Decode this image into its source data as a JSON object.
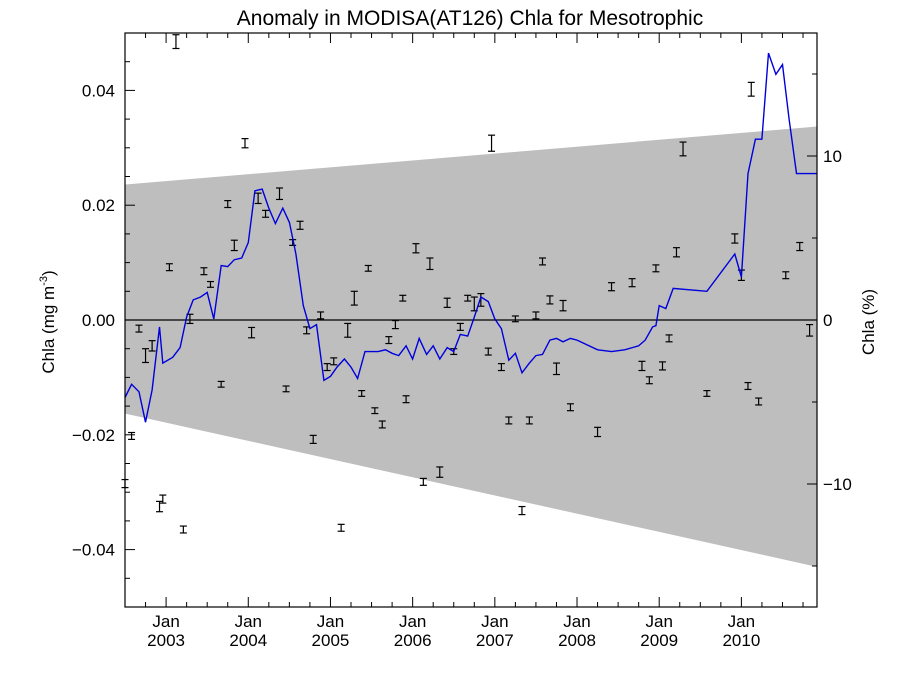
{
  "chart_data": {
    "type": "line",
    "title": "Anomaly in MODISA(AT126) Chla for Mesotrophic",
    "ylabel_left": "Chla (mg m",
    "ylabel_left_sup": "-3",
    "ylabel_left_close": ")",
    "ylabel_right": "Chla (%)",
    "xlim": [
      2002.5,
      2010.92
    ],
    "ylim": [
      -0.05,
      0.05
    ],
    "y2lim": [
      -17.5,
      17.5
    ],
    "yticks": [
      {
        "value": 0.04,
        "label": "0.04"
      },
      {
        "value": 0.02,
        "label": "0.02"
      },
      {
        "value": 0.0,
        "label": "0.00"
      },
      {
        "value": -0.02,
        "label": "−0.02"
      },
      {
        "value": -0.04,
        "label": "−0.04"
      }
    ],
    "y2ticks": [
      {
        "value": 10,
        "label": "10"
      },
      {
        "value": 0,
        "label": "0"
      },
      {
        "value": -10,
        "label": "−10"
      }
    ],
    "xticks": [
      {
        "value": 2003.0,
        "month": "Jan",
        "year": "2003"
      },
      {
        "value": 2004.0,
        "month": "Jan",
        "year": "2004"
      },
      {
        "value": 2005.0,
        "month": "Jan",
        "year": "2005"
      },
      {
        "value": 2006.0,
        "month": "Jan",
        "year": "2006"
      },
      {
        "value": 2007.0,
        "month": "Jan",
        "year": "2007"
      },
      {
        "value": 2008.0,
        "month": "Jan",
        "year": "2008"
      },
      {
        "value": 2009.0,
        "month": "Jan",
        "year": "2009"
      },
      {
        "value": 2010.0,
        "month": "Jan",
        "year": "2010"
      }
    ],
    "band": {
      "upper": [
        [
          2002.5,
          0.0236
        ],
        [
          2010.92,
          0.0337
        ]
      ],
      "lower": [
        [
          2002.5,
          -0.0163
        ],
        [
          2010.92,
          -0.043
        ]
      ],
      "color": "#bebebe"
    },
    "line": {
      "color": "#0000dd",
      "points": [
        [
          2002.5,
          -0.0135
        ],
        [
          2002.58,
          -0.0112
        ],
        [
          2002.67,
          -0.0125
        ],
        [
          2002.75,
          -0.0178
        ],
        [
          2002.83,
          -0.0122
        ],
        [
          2002.92,
          -0.0012
        ],
        [
          2002.96,
          -0.0075
        ],
        [
          2003.08,
          -0.0065
        ],
        [
          2003.17,
          -0.0048
        ],
        [
          2003.25,
          0.0005
        ],
        [
          2003.33,
          0.0035
        ],
        [
          2003.42,
          0.004
        ],
        [
          2003.5,
          0.0048
        ],
        [
          2003.58,
          0.0002
        ],
        [
          2003.67,
          0.0095
        ],
        [
          2003.75,
          0.0093
        ],
        [
          2003.83,
          0.0105
        ],
        [
          2003.92,
          0.0108
        ],
        [
          2004.0,
          0.0135
        ],
        [
          2004.08,
          0.0225
        ],
        [
          2004.17,
          0.0228
        ],
        [
          2004.25,
          0.0195
        ],
        [
          2004.33,
          0.0168
        ],
        [
          2004.42,
          0.0195
        ],
        [
          2004.5,
          0.017
        ],
        [
          2004.58,
          0.0115
        ],
        [
          2004.67,
          0.0025
        ],
        [
          2004.75,
          -0.0015
        ],
        [
          2004.83,
          -0.0008
        ],
        [
          2004.92,
          -0.0105
        ],
        [
          2005.0,
          -0.0098
        ],
        [
          2005.08,
          -0.0082
        ],
        [
          2005.17,
          -0.0068
        ],
        [
          2005.25,
          -0.0082
        ],
        [
          2005.33,
          -0.0102
        ],
        [
          2005.42,
          -0.0055
        ],
        [
          2005.5,
          -0.0055
        ],
        [
          2005.58,
          -0.0055
        ],
        [
          2005.67,
          -0.0052
        ],
        [
          2005.75,
          -0.0058
        ],
        [
          2005.83,
          -0.0062
        ],
        [
          2005.92,
          -0.0045
        ],
        [
          2006.0,
          -0.0068
        ],
        [
          2006.08,
          -0.0032
        ],
        [
          2006.17,
          -0.006
        ],
        [
          2006.25,
          -0.0045
        ],
        [
          2006.33,
          -0.0068
        ],
        [
          2006.42,
          -0.0048
        ],
        [
          2006.5,
          -0.0055
        ],
        [
          2006.58,
          -0.0025
        ],
        [
          2006.67,
          -0.0028
        ],
        [
          2006.75,
          0.0005
        ],
        [
          2006.83,
          0.004
        ],
        [
          2006.92,
          0.0032
        ],
        [
          2007.0,
          0.0002
        ],
        [
          2007.08,
          -0.0015
        ],
        [
          2007.17,
          -0.007
        ],
        [
          2007.25,
          -0.0058
        ],
        [
          2007.33,
          -0.0092
        ],
        [
          2007.42,
          -0.0075
        ],
        [
          2007.5,
          -0.0062
        ],
        [
          2007.58,
          -0.006
        ],
        [
          2007.67,
          -0.0035
        ],
        [
          2007.75,
          -0.0032
        ],
        [
          2007.83,
          -0.0038
        ],
        [
          2007.92,
          -0.0032
        ],
        [
          2008.0,
          -0.0035
        ],
        [
          2008.25,
          -0.0052
        ],
        [
          2008.42,
          -0.0055
        ],
        [
          2008.58,
          -0.0052
        ],
        [
          2008.75,
          -0.0045
        ],
        [
          2008.83,
          -0.0035
        ],
        [
          2008.92,
          -0.0012
        ],
        [
          2008.96,
          -0.001
        ],
        [
          2009.0,
          0.0025
        ],
        [
          2009.08,
          0.002
        ],
        [
          2009.17,
          0.0055
        ],
        [
          2009.58,
          0.005
        ],
        [
          2009.92,
          0.0115
        ],
        [
          2010.0,
          0.0075
        ],
        [
          2010.08,
          0.0255
        ],
        [
          2010.17,
          0.0315
        ],
        [
          2010.25,
          0.0315
        ],
        [
          2010.33,
          0.0465
        ],
        [
          2010.42,
          0.0428
        ],
        [
          2010.5,
          0.0445
        ],
        [
          2010.58,
          0.035
        ],
        [
          2010.67,
          0.0255
        ],
        [
          2010.75,
          0.0255
        ],
        [
          2010.92,
          0.0255
        ]
      ]
    },
    "zero_line": 0.0,
    "scatter_errorbars": [
      [
        2002.5,
        -0.0285,
        0.0007
      ],
      [
        2002.58,
        -0.0202,
        0.0006
      ],
      [
        2002.67,
        -0.0015,
        0.0006
      ],
      [
        2002.75,
        -0.0062,
        0.0012
      ],
      [
        2002.83,
        -0.0045,
        0.0009
      ],
      [
        2002.92,
        -0.0325,
        0.0009
      ],
      [
        2002.96,
        -0.0312,
        0.0007
      ],
      [
        2003.04,
        0.0092,
        0.0006
      ],
      [
        2003.12,
        0.0485,
        0.0012
      ],
      [
        2003.21,
        -0.0365,
        0.0006
      ],
      [
        2003.29,
        0.0002,
        0.0008
      ],
      [
        2003.46,
        0.0085,
        0.0006
      ],
      [
        2003.54,
        0.0062,
        0.0005
      ],
      [
        2003.67,
        -0.0112,
        0.0005
      ],
      [
        2003.75,
        0.0202,
        0.0006
      ],
      [
        2003.83,
        0.013,
        0.0009
      ],
      [
        2003.96,
        0.0308,
        0.0008
      ],
      [
        2004.04,
        -0.0022,
        0.0009
      ],
      [
        2004.12,
        0.0212,
        0.0009
      ],
      [
        2004.21,
        0.0185,
        0.0006
      ],
      [
        2004.38,
        0.022,
        0.001
      ],
      [
        2004.46,
        -0.012,
        0.0005
      ],
      [
        2004.54,
        0.0135,
        0.0005
      ],
      [
        2004.63,
        0.0165,
        0.0007
      ],
      [
        2004.71,
        -0.0018,
        0.0006
      ],
      [
        2004.79,
        -0.0208,
        0.0007
      ],
      [
        2004.88,
        0.0008,
        0.0006
      ],
      [
        2004.96,
        -0.0082,
        0.0006
      ],
      [
        2005.04,
        -0.0072,
        0.0006
      ],
      [
        2005.13,
        -0.0362,
        0.0006
      ],
      [
        2005.21,
        -0.0018,
        0.0012
      ],
      [
        2005.29,
        0.0038,
        0.0012
      ],
      [
        2005.38,
        -0.0128,
        0.0005
      ],
      [
        2005.46,
        0.009,
        0.0005
      ],
      [
        2005.54,
        -0.0158,
        0.0005
      ],
      [
        2005.63,
        -0.0182,
        0.0006
      ],
      [
        2005.71,
        -0.0035,
        0.0006
      ],
      [
        2005.79,
        -0.0008,
        0.0007
      ],
      [
        2005.88,
        0.0038,
        0.0005
      ],
      [
        2005.92,
        -0.0138,
        0.0006
      ],
      [
        2006.04,
        0.0125,
        0.0008
      ],
      [
        2006.13,
        -0.0282,
        0.0006
      ],
      [
        2006.21,
        0.0098,
        0.001
      ],
      [
        2006.33,
        -0.0265,
        0.0009
      ],
      [
        2006.42,
        0.003,
        0.0008
      ],
      [
        2006.5,
        -0.0055,
        0.0005
      ],
      [
        2006.58,
        -0.0012,
        0.0006
      ],
      [
        2006.67,
        0.0038,
        0.0005
      ],
      [
        2006.75,
        0.0028,
        0.0012
      ],
      [
        2006.83,
        0.0035,
        0.0011
      ],
      [
        2006.92,
        -0.0055,
        0.0006
      ],
      [
        2006.96,
        0.0308,
        0.0014
      ],
      [
        2007.08,
        -0.0082,
        0.0006
      ],
      [
        2007.17,
        -0.0175,
        0.0006
      ],
      [
        2007.25,
        0.0002,
        0.0005
      ],
      [
        2007.33,
        -0.0332,
        0.0007
      ],
      [
        2007.42,
        -0.0175,
        0.0006
      ],
      [
        2007.5,
        0.0008,
        0.0006
      ],
      [
        2007.58,
        0.0102,
        0.0006
      ],
      [
        2007.67,
        0.0035,
        0.0007
      ],
      [
        2007.75,
        -0.0085,
        0.001
      ],
      [
        2007.83,
        0.0025,
        0.0009
      ],
      [
        2007.92,
        -0.0152,
        0.0006
      ],
      [
        2008.25,
        -0.0195,
        0.0008
      ],
      [
        2008.42,
        0.0058,
        0.0007
      ],
      [
        2008.67,
        0.0065,
        0.0007
      ],
      [
        2008.79,
        -0.008,
        0.0008
      ],
      [
        2008.88,
        -0.0105,
        0.0006
      ],
      [
        2008.96,
        0.009,
        0.0006
      ],
      [
        2009.04,
        -0.008,
        0.0007
      ],
      [
        2009.12,
        -0.0032,
        0.0006
      ],
      [
        2009.21,
        0.0118,
        0.0008
      ],
      [
        2009.29,
        0.0298,
        0.0012
      ],
      [
        2009.58,
        -0.0128,
        0.0005
      ],
      [
        2009.92,
        0.0142,
        0.0008
      ],
      [
        2010.0,
        0.0078,
        0.0009
      ],
      [
        2010.08,
        -0.0115,
        0.0006
      ],
      [
        2010.12,
        0.0402,
        0.0012
      ],
      [
        2010.21,
        -0.0142,
        0.0006
      ],
      [
        2010.54,
        0.0078,
        0.0006
      ],
      [
        2010.71,
        0.0128,
        0.0007
      ],
      [
        2010.83,
        -0.0018,
        0.001
      ]
    ]
  }
}
